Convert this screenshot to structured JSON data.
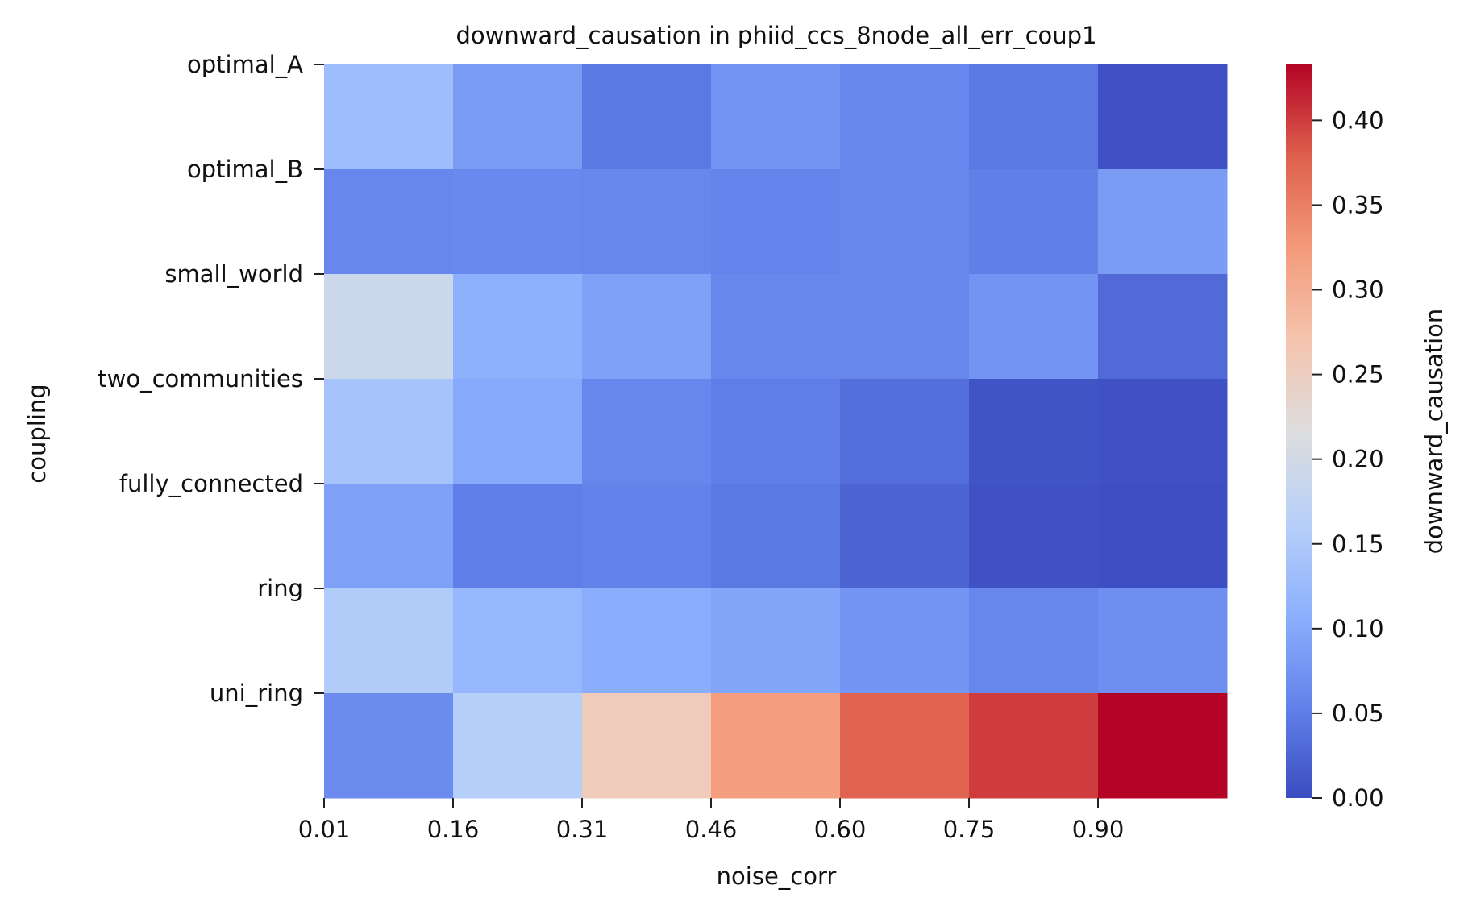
{
  "chart_data": {
    "type": "heatmap",
    "title": "downward_causation in phiid_ccs_8node_all_err_coup1",
    "xlabel": "noise_corr",
    "ylabel": "coupling",
    "x_tick_labels": [
      "0.01",
      "0.16",
      "0.31",
      "0.46",
      "0.60",
      "0.75",
      "0.90"
    ],
    "rows": [
      "optimal_A",
      "optimal_B",
      "small_world",
      "two_communities",
      "fully_connected",
      "ring",
      "uni_ring"
    ],
    "n_columns": 7,
    "values": [
      [
        0.13,
        0.085,
        0.045,
        0.075,
        0.06,
        0.045,
        0.005
      ],
      [
        0.06,
        0.062,
        0.06,
        0.057,
        0.06,
        0.052,
        0.085
      ],
      [
        0.19,
        0.11,
        0.09,
        0.06,
        0.06,
        0.075,
        0.03
      ],
      [
        0.14,
        0.1,
        0.06,
        0.05,
        0.035,
        0.008,
        0.005
      ],
      [
        0.09,
        0.05,
        0.055,
        0.045,
        0.025,
        0.005,
        0.003
      ],
      [
        0.155,
        0.12,
        0.105,
        0.095,
        0.075,
        0.06,
        0.07
      ],
      [
        0.065,
        0.16,
        0.255,
        0.32,
        0.375,
        0.4,
        0.433
      ]
    ],
    "colorbar": {
      "label": "downward_causation",
      "colormap": "coolwarm",
      "range": [
        0.0,
        0.433
      ],
      "ticks": [
        "0.00",
        "0.05",
        "0.10",
        "0.15",
        "0.20",
        "0.25",
        "0.30",
        "0.35",
        "0.40"
      ]
    }
  }
}
